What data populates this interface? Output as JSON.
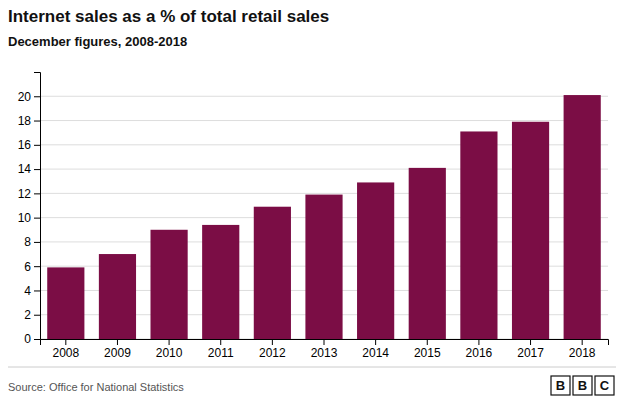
{
  "chart_data": {
    "type": "bar",
    "title": "Internet sales as a % of total retail sales",
    "subtitle": "December figures, 2008-2018",
    "source": "Source: Office for National Statistics",
    "annotations": [
      "B",
      "B",
      "C"
    ],
    "categories": [
      "2008",
      "2009",
      "2010",
      "2011",
      "2012",
      "2013",
      "2014",
      "2015",
      "2016",
      "2017",
      "2018"
    ],
    "values": [
      5.9,
      7.0,
      9.0,
      9.4,
      10.9,
      11.9,
      12.9,
      14.1,
      17.1,
      17.9,
      20.1
    ],
    "color": "#7B0D45",
    "ylim": [
      0,
      22
    ],
    "yticks": [
      0,
      2,
      4,
      6,
      8,
      10,
      12,
      14,
      16,
      18,
      20
    ],
    "grid": true
  }
}
